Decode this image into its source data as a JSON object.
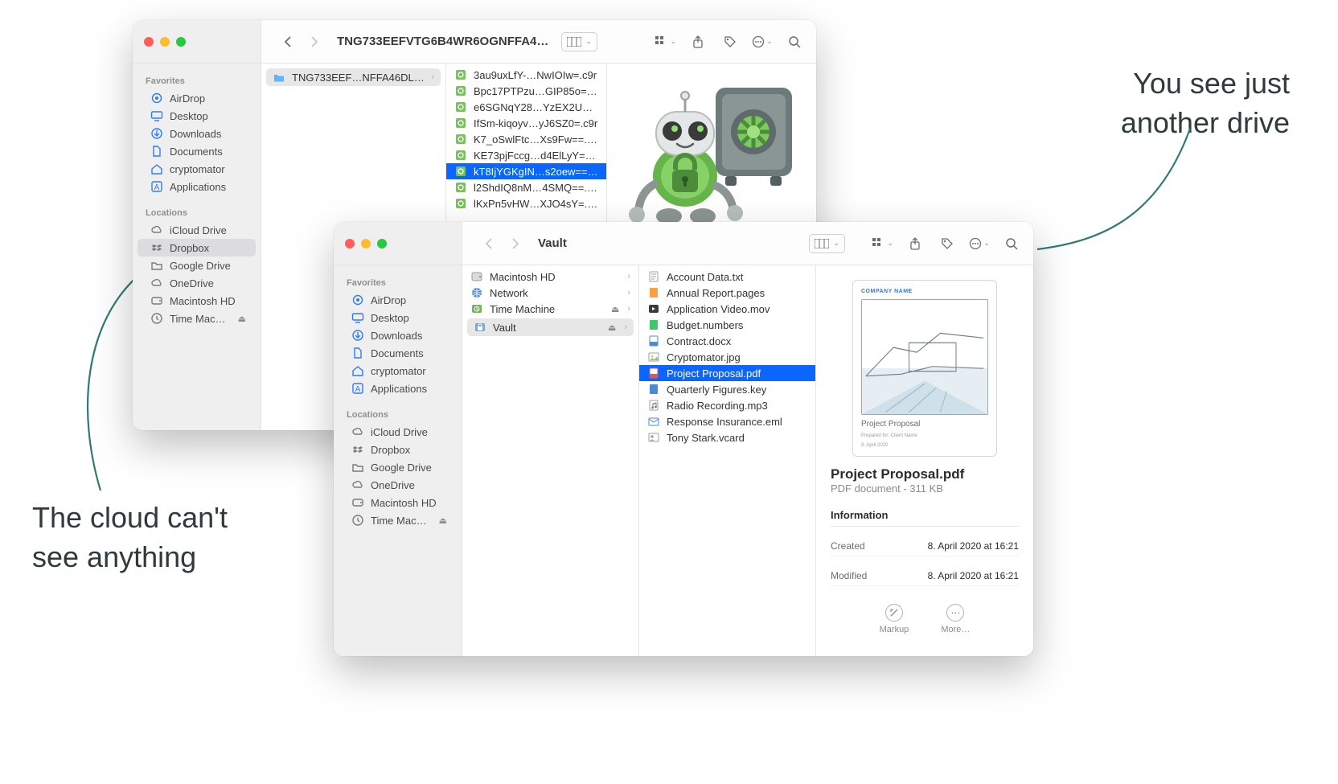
{
  "annotations": {
    "left_line1": "The cloud can't",
    "left_line2": "see anything",
    "right_line1": "You see just",
    "right_line2": "another drive"
  },
  "colors": {
    "accent": "#0a66ff",
    "curve": "#2f7a72",
    "robot_green": "#66b54a",
    "robot_dark": "#4d8c3a",
    "safe_body": "#6c7a7a",
    "safe_dial": "#7cc95d"
  },
  "back_window": {
    "title": "TNG733EEFVTG6B4WR6OGNFFA4…",
    "sidebar": {
      "favorites_label": "Favorites",
      "favorites": [
        {
          "icon": "airdrop",
          "label": "AirDrop"
        },
        {
          "icon": "desktop",
          "label": "Desktop"
        },
        {
          "icon": "downloads",
          "label": "Downloads"
        },
        {
          "icon": "doc",
          "label": "Documents"
        },
        {
          "icon": "home",
          "label": "cryptomator"
        },
        {
          "icon": "apps",
          "label": "Applications"
        }
      ],
      "locations_label": "Locations",
      "locations": [
        {
          "icon": "cloud",
          "label": "iCloud Drive"
        },
        {
          "icon": "dropbox",
          "label": "Dropbox",
          "active": true
        },
        {
          "icon": "folder",
          "label": "Google Drive"
        },
        {
          "icon": "cloud",
          "label": "OneDrive"
        },
        {
          "icon": "hdd",
          "label": "Macintosh HD"
        },
        {
          "icon": "time",
          "label": "Time Machine",
          "eject": true
        }
      ]
    },
    "col1_folder": "TNG733EEF…NFFA46DLO2",
    "col2_files": [
      "3au9uxLfY-…NwIOIw=.c9r",
      "Bpc17PTPzu…GIP85o=.c9r",
      "e6SGNqY28…YzEX2U=.c9r",
      "IfSm-kiqoyv…yJ6SZ0=.c9r",
      "K7_oSwlFtc…Xs9Fw==.c9r",
      "KE73pjFccg…d4ElLyY=.c9r",
      "kT8IjYGKgIN…s2oew==.c9r",
      "l2ShdIQ8nM…4SMQ==.c9r",
      "lKxPn5vHW…XJO4sY=.c9r"
    ],
    "col2_selected_index": 6
  },
  "front_window": {
    "title": "Vault",
    "sidebar": {
      "favorites_label": "Favorites",
      "favorites": [
        {
          "icon": "airdrop",
          "label": "AirDrop"
        },
        {
          "icon": "desktop",
          "label": "Desktop"
        },
        {
          "icon": "downloads",
          "label": "Downloads"
        },
        {
          "icon": "doc",
          "label": "Documents"
        },
        {
          "icon": "home",
          "label": "cryptomator"
        },
        {
          "icon": "apps",
          "label": "Applications"
        }
      ],
      "locations_label": "Locations",
      "locations": [
        {
          "icon": "cloud",
          "label": "iCloud Drive"
        },
        {
          "icon": "dropbox",
          "label": "Dropbox"
        },
        {
          "icon": "folder",
          "label": "Google Drive"
        },
        {
          "icon": "cloud",
          "label": "OneDrive"
        },
        {
          "icon": "hdd",
          "label": "Macintosh HD"
        },
        {
          "icon": "time",
          "label": "Time Machine",
          "eject": true
        }
      ]
    },
    "col1_drives": [
      {
        "icon": "hdd-int",
        "label": "Macintosh HD"
      },
      {
        "icon": "net",
        "label": "Network"
      },
      {
        "icon": "tm-drive",
        "label": "Time Machine",
        "eject": true
      },
      {
        "icon": "vault",
        "label": "Vault",
        "eject": true,
        "active": true
      }
    ],
    "col2_files": [
      {
        "icon": "txt",
        "label": "Account Data.txt"
      },
      {
        "icon": "pages",
        "label": "Annual Report.pages"
      },
      {
        "icon": "mov",
        "label": "Application Video.mov"
      },
      {
        "icon": "numbers",
        "label": "Budget.numbers"
      },
      {
        "icon": "docx",
        "label": "Contract.docx"
      },
      {
        "icon": "jpg",
        "label": "Cryptomator.jpg"
      },
      {
        "icon": "pdf",
        "label": "Project Proposal.pdf",
        "selected": true
      },
      {
        "icon": "key",
        "label": "Quarterly Figures.key"
      },
      {
        "icon": "mp3",
        "label": "Radio Recording.mp3"
      },
      {
        "icon": "eml",
        "label": "Response Insurance.eml"
      },
      {
        "icon": "vcard",
        "label": "Tony Stark.vcard"
      }
    ],
    "preview": {
      "company": "COMPANY NAME",
      "doc_title": "Project Proposal",
      "filename": "Project Proposal.pdf",
      "subtitle": "PDF document - 311 KB",
      "info_label": "Information",
      "created_label": "Created",
      "created_value": "8. April 2020 at 16:21",
      "modified_label": "Modified",
      "modified_value": "8. April 2020 at 16:21",
      "markup": "Markup",
      "more": "More…"
    }
  }
}
